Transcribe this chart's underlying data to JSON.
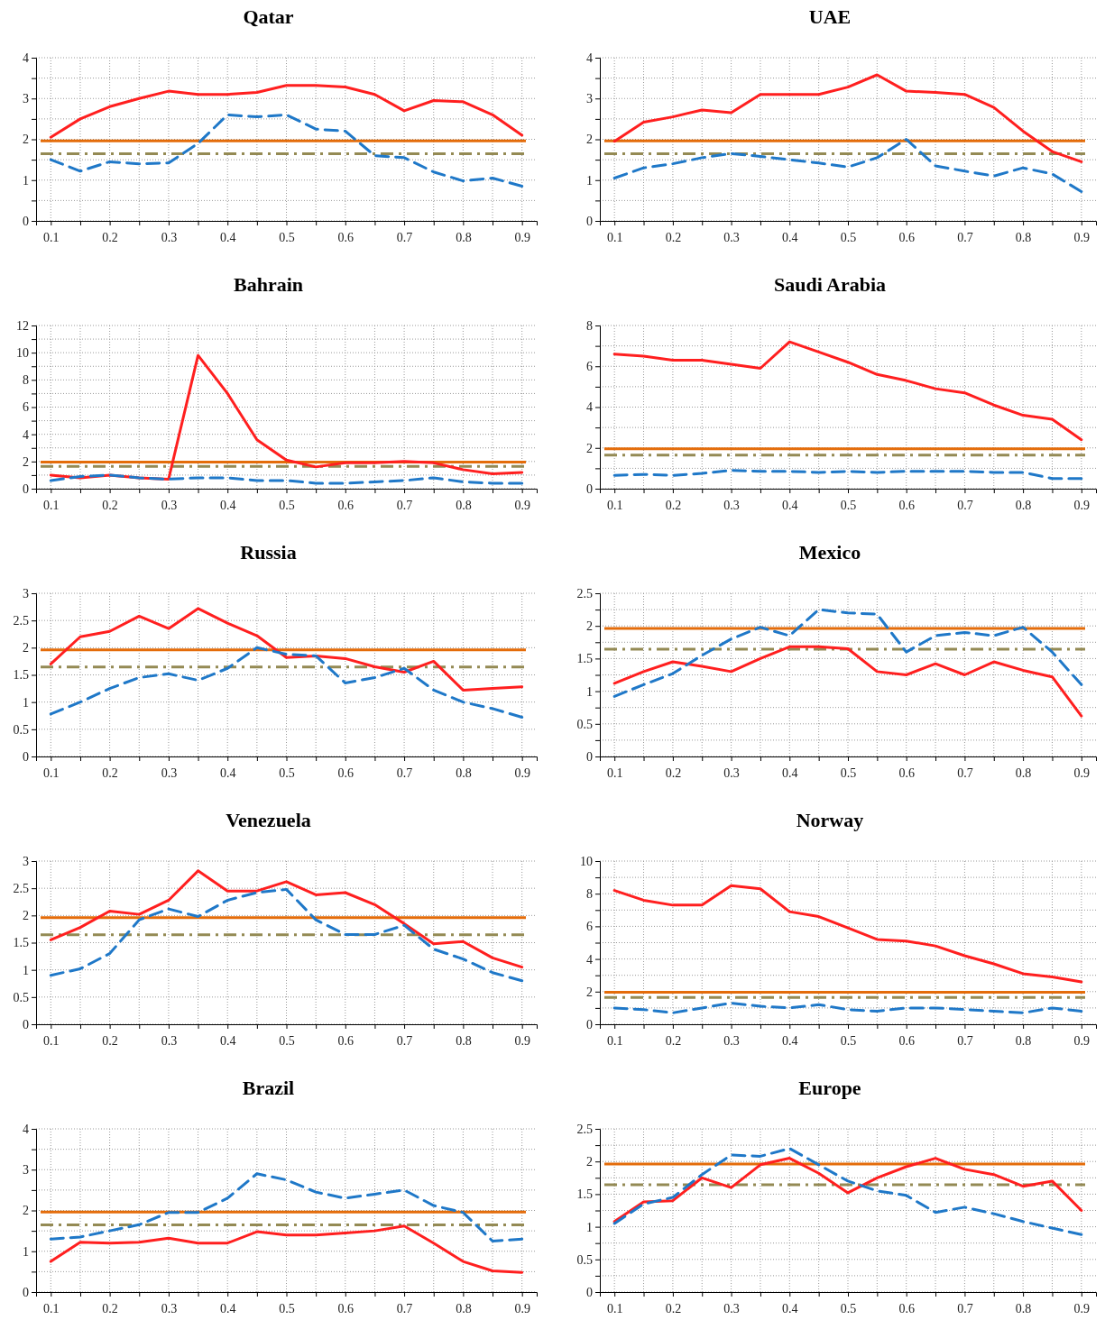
{
  "chart_data": [
    {
      "type": "line",
      "title": "Qatar",
      "x": [
        0.1,
        0.15,
        0.2,
        0.25,
        0.3,
        0.35,
        0.4,
        0.45,
        0.5,
        0.55,
        0.6,
        0.65,
        0.7,
        0.75,
        0.8,
        0.85,
        0.9
      ],
      "xlim": [
        0.075,
        0.925
      ],
      "xticks": [
        0.1,
        {
          "value": 0.15,
          "label": null
        },
        0.2,
        {
          "value": 0.25,
          "label": null
        },
        0.3,
        {
          "value": 0.35,
          "label": null
        },
        0.4,
        {
          "value": 0.45,
          "label": null
        },
        0.5,
        {
          "value": 0.55,
          "label": null
        },
        0.6,
        {
          "value": 0.65,
          "label": null
        },
        0.7,
        {
          "value": 0.75,
          "label": null
        },
        0.8,
        {
          "value": 0.85,
          "label": null
        },
        0.9
      ],
      "ylim": [
        0,
        4
      ],
      "yticks": [
        0,
        {
          "value": 0.5,
          "label": null
        },
        1,
        {
          "value": 1.5,
          "label": null
        },
        2,
        {
          "value": 2.5,
          "label": null
        },
        3,
        {
          "value": 3.5,
          "label": null
        },
        4
      ],
      "grid": true,
      "ref_lines": [
        {
          "axis": "y",
          "value": 1.96,
          "color": "#e46c0a",
          "line_style": "solid"
        },
        {
          "axis": "y",
          "value": 1.645,
          "color": "#948a54",
          "line_style": "dashed"
        }
      ],
      "series": [
        {
          "color": "#ff1f1f",
          "line_style": "solid",
          "values": [
            2.05,
            2.5,
            2.8,
            3.0,
            3.18,
            3.1,
            3.1,
            3.15,
            3.32,
            3.32,
            3.28,
            3.1,
            2.7,
            2.95,
            2.92,
            2.6,
            2.1
          ]
        },
        {
          "color": "#1f78c8",
          "line_style": "dashed",
          "values": [
            1.5,
            1.22,
            1.45,
            1.4,
            1.42,
            1.9,
            2.6,
            2.55,
            2.6,
            2.25,
            2.2,
            1.6,
            1.55,
            1.2,
            0.98,
            1.05,
            0.85
          ]
        }
      ]
    },
    {
      "type": "line",
      "title": "UAE",
      "x": [
        0.1,
        0.15,
        0.2,
        0.25,
        0.3,
        0.35,
        0.4,
        0.45,
        0.5,
        0.55,
        0.6,
        0.65,
        0.7,
        0.75,
        0.8,
        0.85,
        0.9
      ],
      "xlim": [
        0.075,
        0.925
      ],
      "xticks": [
        0.1,
        {
          "value": 0.15,
          "label": null
        },
        0.2,
        {
          "value": 0.25,
          "label": null
        },
        0.3,
        {
          "value": 0.35,
          "label": null
        },
        0.4,
        {
          "value": 0.45,
          "label": null
        },
        0.5,
        {
          "value": 0.55,
          "label": null
        },
        0.6,
        {
          "value": 0.65,
          "label": null
        },
        0.7,
        {
          "value": 0.75,
          "label": null
        },
        0.8,
        {
          "value": 0.85,
          "label": null
        },
        0.9
      ],
      "ylim": [
        0,
        4
      ],
      "yticks": [
        0,
        {
          "value": 0.5,
          "label": null
        },
        1,
        {
          "value": 1.5,
          "label": null
        },
        2,
        {
          "value": 2.5,
          "label": null
        },
        3,
        {
          "value": 3.5,
          "label": null
        },
        4
      ],
      "grid": true,
      "ref_lines": [
        {
          "axis": "y",
          "value": 1.96,
          "color": "#e46c0a",
          "line_style": "solid"
        },
        {
          "axis": "y",
          "value": 1.645,
          "color": "#948a54",
          "line_style": "dashed"
        }
      ],
      "series": [
        {
          "color": "#ff1f1f",
          "line_style": "solid",
          "values": [
            1.95,
            2.42,
            2.55,
            2.72,
            2.65,
            3.1,
            3.1,
            3.1,
            3.28,
            3.58,
            3.18,
            3.15,
            3.1,
            2.78,
            2.2,
            1.7,
            1.45
          ]
        },
        {
          "color": "#1f78c8",
          "line_style": "dashed",
          "values": [
            1.05,
            1.3,
            1.4,
            1.55,
            1.65,
            1.58,
            1.5,
            1.42,
            1.32,
            1.55,
            2.0,
            1.35,
            1.22,
            1.1,
            1.3,
            1.15,
            0.72
          ]
        }
      ]
    },
    {
      "type": "line",
      "title": "Bahrain",
      "x": [
        0.1,
        0.15,
        0.2,
        0.25,
        0.3,
        0.35,
        0.4,
        0.45,
        0.5,
        0.55,
        0.6,
        0.65,
        0.7,
        0.75,
        0.8,
        0.85,
        0.9
      ],
      "xlim": [
        0.075,
        0.925
      ],
      "xticks": [
        0.1,
        {
          "value": 0.15,
          "label": null
        },
        0.2,
        {
          "value": 0.25,
          "label": null
        },
        0.3,
        {
          "value": 0.35,
          "label": null
        },
        0.4,
        {
          "value": 0.45,
          "label": null
        },
        0.5,
        {
          "value": 0.55,
          "label": null
        },
        0.6,
        {
          "value": 0.65,
          "label": null
        },
        0.7,
        {
          "value": 0.75,
          "label": null
        },
        0.8,
        {
          "value": 0.85,
          "label": null
        },
        0.9
      ],
      "ylim": [
        0,
        12
      ],
      "yticks": [
        0,
        {
          "value": 1,
          "label": null
        },
        2,
        {
          "value": 3,
          "label": null
        },
        4,
        {
          "value": 5,
          "label": null
        },
        6,
        {
          "value": 7,
          "label": null
        },
        8,
        {
          "value": 9,
          "label": null
        },
        10,
        {
          "value": 11,
          "label": null
        },
        12
      ],
      "grid": true,
      "ref_lines": [
        {
          "axis": "y",
          "value": 1.96,
          "color": "#e46c0a",
          "line_style": "solid"
        },
        {
          "axis": "y",
          "value": 1.645,
          "color": "#948a54",
          "line_style": "dashed"
        }
      ],
      "series": [
        {
          "color": "#ff1f1f",
          "line_style": "solid",
          "values": [
            1.0,
            0.8,
            1.0,
            0.8,
            0.7,
            9.8,
            7.0,
            3.6,
            2.1,
            1.6,
            1.9,
            1.9,
            2.0,
            1.9,
            1.4,
            1.1,
            1.2
          ]
        },
        {
          "color": "#1f78c8",
          "line_style": "dashed",
          "values": [
            0.6,
            0.9,
            1.0,
            0.8,
            0.7,
            0.8,
            0.8,
            0.6,
            0.6,
            0.4,
            0.4,
            0.5,
            0.6,
            0.8,
            0.5,
            0.4,
            0.4
          ]
        }
      ]
    },
    {
      "type": "line",
      "title": "Saudi Arabia",
      "x": [
        0.1,
        0.15,
        0.2,
        0.25,
        0.3,
        0.35,
        0.4,
        0.45,
        0.5,
        0.55,
        0.6,
        0.65,
        0.7,
        0.75,
        0.8,
        0.85,
        0.9
      ],
      "xlim": [
        0.075,
        0.925
      ],
      "xticks": [
        0.1,
        {
          "value": 0.15,
          "label": null
        },
        0.2,
        {
          "value": 0.25,
          "label": null
        },
        0.3,
        {
          "value": 0.35,
          "label": null
        },
        0.4,
        {
          "value": 0.45,
          "label": null
        },
        0.5,
        {
          "value": 0.55,
          "label": null
        },
        0.6,
        {
          "value": 0.65,
          "label": null
        },
        0.7,
        {
          "value": 0.75,
          "label": null
        },
        0.8,
        {
          "value": 0.85,
          "label": null
        },
        0.9
      ],
      "ylim": [
        0,
        8
      ],
      "yticks": [
        0,
        {
          "value": 1,
          "label": null
        },
        2,
        {
          "value": 3,
          "label": null
        },
        4,
        {
          "value": 5,
          "label": null
        },
        6,
        {
          "value": 7,
          "label": null
        },
        8
      ],
      "grid": true,
      "ref_lines": [
        {
          "axis": "y",
          "value": 1.96,
          "color": "#e46c0a",
          "line_style": "solid"
        },
        {
          "axis": "y",
          "value": 1.645,
          "color": "#948a54",
          "line_style": "dashed"
        }
      ],
      "series": [
        {
          "color": "#ff1f1f",
          "line_style": "solid",
          "values": [
            6.6,
            6.5,
            6.3,
            6.3,
            6.1,
            5.9,
            7.2,
            6.7,
            6.2,
            5.6,
            5.3,
            4.9,
            4.7,
            4.1,
            3.6,
            3.4,
            2.4
          ]
        },
        {
          "color": "#1f78c8",
          "line_style": "dashed",
          "values": [
            0.65,
            0.7,
            0.65,
            0.75,
            0.9,
            0.85,
            0.85,
            0.8,
            0.85,
            0.8,
            0.85,
            0.85,
            0.85,
            0.8,
            0.8,
            0.5,
            0.5
          ]
        }
      ]
    },
    {
      "type": "line",
      "title": "Russia",
      "x": [
        0.1,
        0.15,
        0.2,
        0.25,
        0.3,
        0.35,
        0.4,
        0.45,
        0.5,
        0.55,
        0.6,
        0.65,
        0.7,
        0.75,
        0.8,
        0.85,
        0.9
      ],
      "xlim": [
        0.075,
        0.925
      ],
      "xticks": [
        0.1,
        {
          "value": 0.15,
          "label": null
        },
        0.2,
        {
          "value": 0.25,
          "label": null
        },
        0.3,
        {
          "value": 0.35,
          "label": null
        },
        0.4,
        {
          "value": 0.45,
          "label": null
        },
        0.5,
        {
          "value": 0.55,
          "label": null
        },
        0.6,
        {
          "value": 0.65,
          "label": null
        },
        0.7,
        {
          "value": 0.75,
          "label": null
        },
        0.8,
        {
          "value": 0.85,
          "label": null
        },
        0.9
      ],
      "ylim": [
        0,
        3
      ],
      "yticks": [
        0,
        0.5,
        1,
        1.5,
        2,
        2.5,
        3
      ],
      "grid": true,
      "ref_lines": [
        {
          "axis": "y",
          "value": 1.96,
          "color": "#e46c0a",
          "line_style": "solid"
        },
        {
          "axis": "y",
          "value": 1.645,
          "color": "#948a54",
          "line_style": "dashed"
        }
      ],
      "series": [
        {
          "color": "#ff1f1f",
          "line_style": "solid",
          "values": [
            1.7,
            2.2,
            2.3,
            2.58,
            2.35,
            2.72,
            2.45,
            2.22,
            1.82,
            1.85,
            1.8,
            1.65,
            1.55,
            1.75,
            1.22,
            1.25,
            1.28
          ]
        },
        {
          "color": "#1f78c8",
          "line_style": "dashed",
          "values": [
            0.78,
            1.0,
            1.25,
            1.45,
            1.52,
            1.4,
            1.62,
            2.0,
            1.88,
            1.85,
            1.35,
            1.45,
            1.62,
            1.22,
            1.0,
            0.88,
            0.72
          ]
        }
      ]
    },
    {
      "type": "line",
      "title": "Mexico",
      "x": [
        0.1,
        0.15,
        0.2,
        0.25,
        0.3,
        0.35,
        0.4,
        0.45,
        0.5,
        0.55,
        0.6,
        0.65,
        0.7,
        0.75,
        0.8,
        0.85,
        0.9
      ],
      "xlim": [
        0.075,
        0.925
      ],
      "xticks": [
        0.1,
        {
          "value": 0.15,
          "label": null
        },
        0.2,
        {
          "value": 0.25,
          "label": null
        },
        0.3,
        {
          "value": 0.35,
          "label": null
        },
        0.4,
        {
          "value": 0.45,
          "label": null
        },
        0.5,
        {
          "value": 0.55,
          "label": null
        },
        0.6,
        {
          "value": 0.65,
          "label": null
        },
        0.7,
        {
          "value": 0.75,
          "label": null
        },
        0.8,
        {
          "value": 0.85,
          "label": null
        },
        0.9
      ],
      "ylim": [
        0,
        2.5
      ],
      "yticks": [
        0,
        {
          "value": 0.25,
          "label": null
        },
        0.5,
        {
          "value": 0.75,
          "label": null
        },
        1,
        {
          "value": 1.25,
          "label": null
        },
        1.5,
        {
          "value": 1.75,
          "label": null
        },
        2,
        {
          "value": 2.25,
          "label": null
        },
        2.5
      ],
      "grid": true,
      "ref_lines": [
        {
          "axis": "y",
          "value": 1.96,
          "color": "#e46c0a",
          "line_style": "solid"
        },
        {
          "axis": "y",
          "value": 1.645,
          "color": "#948a54",
          "line_style": "dashed"
        }
      ],
      "series": [
        {
          "color": "#ff1f1f",
          "line_style": "solid",
          "values": [
            1.12,
            1.3,
            1.45,
            1.38,
            1.3,
            1.5,
            1.68,
            1.68,
            1.65,
            1.3,
            1.25,
            1.42,
            1.25,
            1.45,
            1.32,
            1.22,
            0.62
          ]
        },
        {
          "color": "#1f78c8",
          "line_style": "dashed",
          "values": [
            0.92,
            1.1,
            1.27,
            1.55,
            1.8,
            1.98,
            1.85,
            2.25,
            2.2,
            2.18,
            1.6,
            1.85,
            1.9,
            1.85,
            1.98,
            1.6,
            1.1
          ]
        }
      ]
    },
    {
      "type": "line",
      "title": "Venezuela",
      "x": [
        0.1,
        0.15,
        0.2,
        0.25,
        0.3,
        0.35,
        0.4,
        0.45,
        0.5,
        0.55,
        0.6,
        0.65,
        0.7,
        0.75,
        0.8,
        0.85,
        0.9
      ],
      "xlim": [
        0.075,
        0.925
      ],
      "xticks": [
        0.1,
        {
          "value": 0.15,
          "label": null
        },
        0.2,
        {
          "value": 0.25,
          "label": null
        },
        0.3,
        {
          "value": 0.35,
          "label": null
        },
        0.4,
        {
          "value": 0.45,
          "label": null
        },
        0.5,
        {
          "value": 0.55,
          "label": null
        },
        0.6,
        {
          "value": 0.65,
          "label": null
        },
        0.7,
        {
          "value": 0.75,
          "label": null
        },
        0.8,
        {
          "value": 0.85,
          "label": null
        },
        0.9
      ],
      "ylim": [
        0,
        3
      ],
      "yticks": [
        0,
        0.5,
        1,
        1.5,
        2,
        2.5,
        3
      ],
      "grid": true,
      "ref_lines": [
        {
          "axis": "y",
          "value": 1.96,
          "color": "#e46c0a",
          "line_style": "solid"
        },
        {
          "axis": "y",
          "value": 1.645,
          "color": "#948a54",
          "line_style": "dashed"
        }
      ],
      "series": [
        {
          "color": "#ff1f1f",
          "line_style": "solid",
          "values": [
            1.55,
            1.78,
            2.08,
            2.02,
            2.28,
            2.82,
            2.45,
            2.45,
            2.62,
            2.38,
            2.42,
            2.2,
            1.85,
            1.48,
            1.52,
            1.22,
            1.05
          ]
        },
        {
          "color": "#1f78c8",
          "line_style": "dashed",
          "values": [
            0.9,
            1.02,
            1.3,
            1.92,
            2.12,
            1.98,
            2.28,
            2.42,
            2.48,
            1.92,
            1.65,
            1.65,
            1.82,
            1.38,
            1.2,
            0.95,
            0.8
          ]
        }
      ]
    },
    {
      "type": "line",
      "title": "Norway",
      "x": [
        0.1,
        0.15,
        0.2,
        0.25,
        0.3,
        0.35,
        0.4,
        0.45,
        0.5,
        0.55,
        0.6,
        0.65,
        0.7,
        0.75,
        0.8,
        0.85,
        0.9
      ],
      "xlim": [
        0.075,
        0.925
      ],
      "xticks": [
        0.1,
        {
          "value": 0.15,
          "label": null
        },
        0.2,
        {
          "value": 0.25,
          "label": null
        },
        0.3,
        {
          "value": 0.35,
          "label": null
        },
        0.4,
        {
          "value": 0.45,
          "label": null
        },
        0.5,
        {
          "value": 0.55,
          "label": null
        },
        0.6,
        {
          "value": 0.65,
          "label": null
        },
        0.7,
        {
          "value": 0.75,
          "label": null
        },
        0.8,
        {
          "value": 0.85,
          "label": null
        },
        0.9
      ],
      "ylim": [
        0,
        10
      ],
      "yticks": [
        0,
        {
          "value": 1,
          "label": null
        },
        2,
        {
          "value": 3,
          "label": null
        },
        4,
        {
          "value": 5,
          "label": null
        },
        6,
        {
          "value": 7,
          "label": null
        },
        8,
        {
          "value": 9,
          "label": null
        },
        10
      ],
      "grid": true,
      "ref_lines": [
        {
          "axis": "y",
          "value": 1.96,
          "color": "#e46c0a",
          "line_style": "solid"
        },
        {
          "axis": "y",
          "value": 1.645,
          "color": "#948a54",
          "line_style": "dashed"
        }
      ],
      "series": [
        {
          "color": "#ff1f1f",
          "line_style": "solid",
          "values": [
            8.2,
            7.6,
            7.3,
            7.3,
            8.5,
            8.3,
            6.9,
            6.6,
            5.9,
            5.2,
            5.1,
            4.8,
            4.2,
            3.7,
            3.1,
            2.9,
            2.6
          ]
        },
        {
          "color": "#1f78c8",
          "line_style": "dashed",
          "values": [
            1.0,
            0.9,
            0.7,
            1.0,
            1.3,
            1.1,
            1.0,
            1.2,
            0.9,
            0.8,
            1.0,
            1.0,
            0.9,
            0.8,
            0.7,
            1.0,
            0.8
          ]
        }
      ]
    },
    {
      "type": "line",
      "title": "Brazil",
      "x": [
        0.1,
        0.15,
        0.2,
        0.25,
        0.3,
        0.35,
        0.4,
        0.45,
        0.5,
        0.55,
        0.6,
        0.65,
        0.7,
        0.75,
        0.8,
        0.85,
        0.9
      ],
      "xlim": [
        0.075,
        0.925
      ],
      "xticks": [
        0.1,
        {
          "value": 0.15,
          "label": null
        },
        0.2,
        {
          "value": 0.25,
          "label": null
        },
        0.3,
        {
          "value": 0.35,
          "label": null
        },
        0.4,
        {
          "value": 0.45,
          "label": null
        },
        0.5,
        {
          "value": 0.55,
          "label": null
        },
        0.6,
        {
          "value": 0.65,
          "label": null
        },
        0.7,
        {
          "value": 0.75,
          "label": null
        },
        0.8,
        {
          "value": 0.85,
          "label": null
        },
        0.9
      ],
      "ylim": [
        0,
        4
      ],
      "yticks": [
        0,
        {
          "value": 0.5,
          "label": null
        },
        1,
        {
          "value": 1.5,
          "label": null
        },
        2,
        {
          "value": 2.5,
          "label": null
        },
        3,
        {
          "value": 3.5,
          "label": null
        },
        4
      ],
      "grid": true,
      "ref_lines": [
        {
          "axis": "y",
          "value": 1.96,
          "color": "#e46c0a",
          "line_style": "solid"
        },
        {
          "axis": "y",
          "value": 1.645,
          "color": "#948a54",
          "line_style": "dashed"
        }
      ],
      "series": [
        {
          "color": "#ff1f1f",
          "line_style": "solid",
          "values": [
            0.75,
            1.22,
            1.2,
            1.22,
            1.32,
            1.2,
            1.2,
            1.48,
            1.4,
            1.4,
            1.45,
            1.5,
            1.62,
            1.2,
            0.75,
            0.52,
            0.48
          ]
        },
        {
          "color": "#1f78c8",
          "line_style": "dashed",
          "values": [
            1.3,
            1.35,
            1.5,
            1.65,
            1.95,
            1.95,
            2.3,
            2.9,
            2.75,
            2.45,
            2.3,
            2.4,
            2.5,
            2.12,
            1.95,
            1.25,
            1.3
          ]
        }
      ]
    },
    {
      "type": "line",
      "title": "Europe",
      "x": [
        0.1,
        0.15,
        0.2,
        0.25,
        0.3,
        0.35,
        0.4,
        0.45,
        0.5,
        0.55,
        0.6,
        0.65,
        0.7,
        0.75,
        0.8,
        0.85,
        0.9
      ],
      "xlim": [
        0.075,
        0.925
      ],
      "xticks": [
        0.1,
        {
          "value": 0.15,
          "label": null
        },
        0.2,
        {
          "value": 0.25,
          "label": null
        },
        0.3,
        {
          "value": 0.35,
          "label": null
        },
        0.4,
        {
          "value": 0.45,
          "label": null
        },
        0.5,
        {
          "value": 0.55,
          "label": null
        },
        0.6,
        {
          "value": 0.65,
          "label": null
        },
        0.7,
        {
          "value": 0.75,
          "label": null
        },
        0.8,
        {
          "value": 0.85,
          "label": null
        },
        0.9
      ],
      "ylim": [
        0,
        2.5
      ],
      "yticks": [
        0,
        {
          "value": 0.25,
          "label": null
        },
        0.5,
        {
          "value": 0.75,
          "label": null
        },
        1,
        {
          "value": 1.25,
          "label": null
        },
        1.5,
        {
          "value": 1.75,
          "label": null
        },
        2,
        {
          "value": 2.25,
          "label": null
        },
        2.5
      ],
      "grid": true,
      "ref_lines": [
        {
          "axis": "y",
          "value": 1.96,
          "color": "#e46c0a",
          "line_style": "solid"
        },
        {
          "axis": "y",
          "value": 1.645,
          "color": "#948a54",
          "line_style": "dashed"
        }
      ],
      "series": [
        {
          "color": "#ff1f1f",
          "line_style": "solid",
          "values": [
            1.08,
            1.38,
            1.4,
            1.75,
            1.6,
            1.95,
            2.05,
            1.82,
            1.52,
            1.75,
            1.92,
            2.05,
            1.88,
            1.8,
            1.62,
            1.7,
            1.25
          ]
        },
        {
          "color": "#1f78c8",
          "line_style": "dashed",
          "values": [
            1.05,
            1.35,
            1.45,
            1.8,
            2.1,
            2.08,
            2.2,
            1.95,
            1.7,
            1.55,
            1.48,
            1.22,
            1.3,
            1.2,
            1.08,
            0.98,
            0.88
          ]
        }
      ]
    }
  ]
}
